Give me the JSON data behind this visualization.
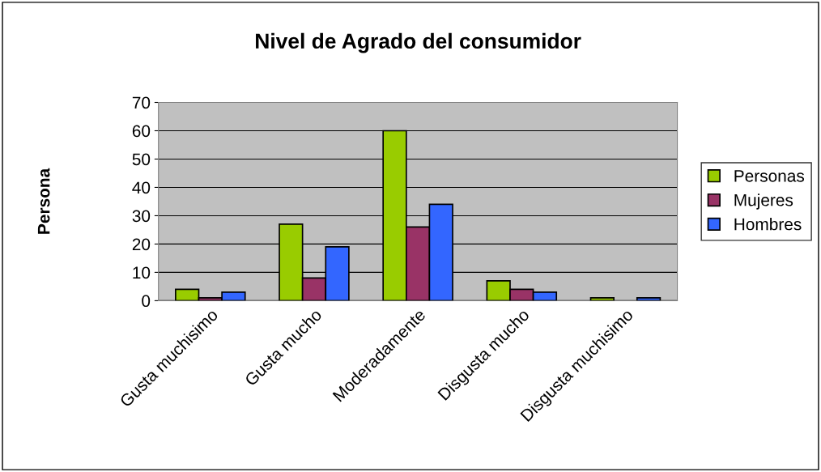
{
  "chart_data": {
    "type": "bar",
    "title": "Nivel de Agrado del consumidor",
    "ylabel": "Persona",
    "categories": [
      "Gusta muchisimo",
      "Gusta mucho",
      "Moderadamente",
      "Disgusta mucho",
      "Disgusta muchisimo"
    ],
    "series": [
      {
        "name": "Personas",
        "color": "#99cc00",
        "values": [
          4,
          27,
          60,
          7,
          1
        ]
      },
      {
        "name": "Mujeres",
        "color": "#993366",
        "values": [
          1,
          8,
          26,
          4,
          0
        ]
      },
      {
        "name": "Hombres",
        "color": "#3366ff",
        "values": [
          3,
          19,
          34,
          3,
          1
        ]
      }
    ],
    "ylim": [
      0,
      70
    ],
    "yticks": [
      0,
      10,
      20,
      30,
      40,
      50,
      60,
      70
    ],
    "grid": "y",
    "legend": "right"
  }
}
